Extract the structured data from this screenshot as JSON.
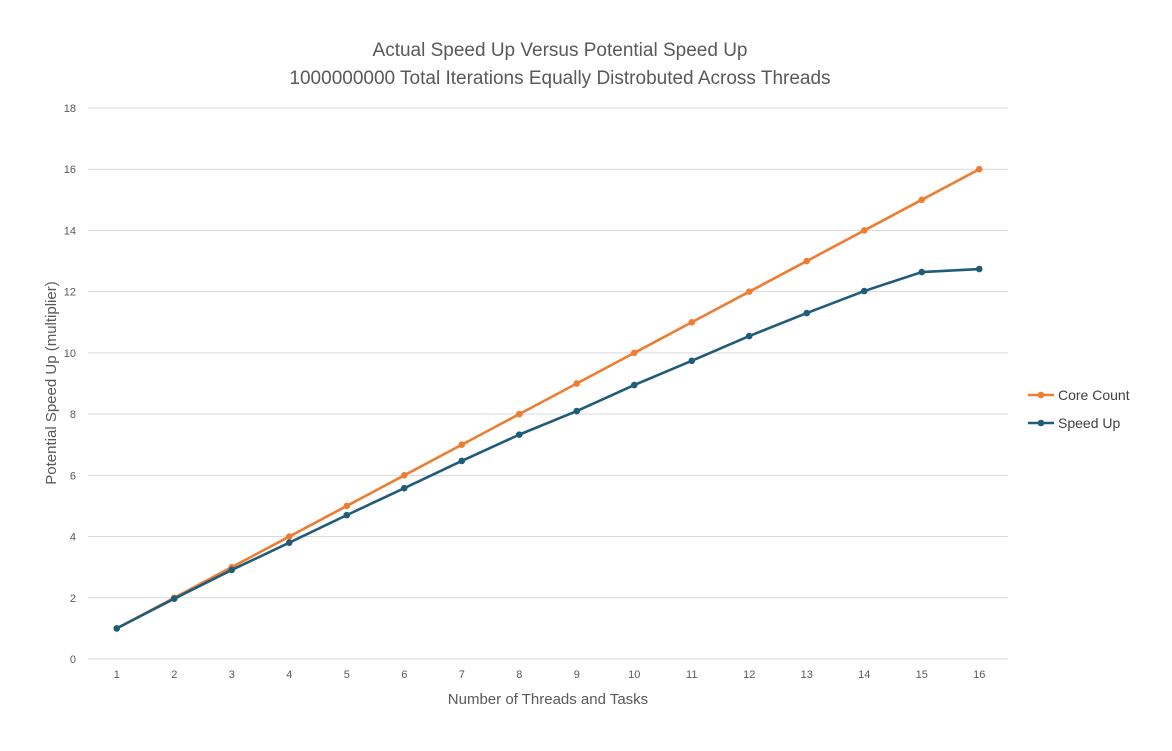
{
  "chart_data": {
    "type": "line",
    "title": "Actual Speed Up Versus Potential Speed Up",
    "subtitle": "1000000000 Total Iterations Equally Distrobuted Across Threads",
    "xlabel": "Number of Threads and Tasks",
    "ylabel": "Potential Speed Up (multiplier)",
    "categories": [
      "1",
      "2",
      "3",
      "4",
      "5",
      "6",
      "7",
      "8",
      "9",
      "10",
      "11",
      "12",
      "13",
      "14",
      "15",
      "16"
    ],
    "ylim": [
      0,
      18
    ],
    "yticks": [
      "0",
      "2",
      "4",
      "6",
      "8",
      "10",
      "12",
      "14",
      "16",
      "18"
    ],
    "grid": true,
    "legend_position": "right",
    "series": [
      {
        "name": "Core Count",
        "color": "#ED7D31",
        "values": [
          1,
          2,
          3,
          4,
          5,
          6,
          7,
          8,
          9,
          10,
          11,
          12,
          13,
          14,
          15,
          16
        ]
      },
      {
        "name": "Speed Up",
        "color": "#1F5C7A",
        "values": [
          1,
          1.97,
          2.91,
          3.8,
          4.7,
          5.58,
          6.47,
          7.33,
          8.1,
          8.95,
          9.74,
          10.55,
          11.3,
          12.02,
          12.64,
          12.74
        ]
      }
    ]
  }
}
